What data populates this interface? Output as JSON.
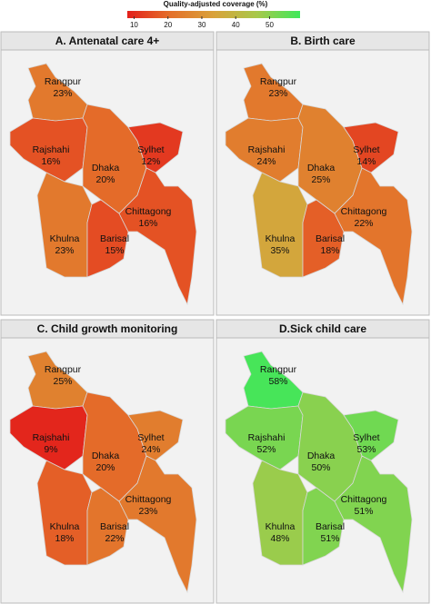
{
  "legend": {
    "title": "Quality-adjusted coverage (%)",
    "clim": [
      8,
      59
    ],
    "ticks": [
      10,
      20,
      30,
      40,
      50
    ],
    "colormap": [
      "#e3201b",
      "#e4702a",
      "#d9a23a",
      "#a8c84a",
      "#3fe85a"
    ]
  },
  "regions": [
    "Rangpur",
    "Rajshahi",
    "Dhaka",
    "Sylhet",
    "Khulna",
    "Barisal",
    "Chittagong"
  ],
  "panels": [
    {
      "title": "A. Antenatal care 4+",
      "values": [
        23,
        16,
        20,
        12,
        23,
        15,
        16
      ],
      "value_labels": [
        "23%",
        "16%",
        "20%",
        "12%",
        "23%",
        "15%",
        "16%"
      ]
    },
    {
      "title": "B. Birth care",
      "values": [
        23,
        24,
        25,
        14,
        35,
        18,
        22
      ],
      "value_labels": [
        "23%",
        "24%",
        "25%",
        "14%",
        "35%",
        "18%",
        "22%"
      ]
    },
    {
      "title": "C. Child growth monitoring",
      "values": [
        25,
        9,
        20,
        24,
        18,
        22,
        23
      ],
      "value_labels": [
        "25%",
        "9%",
        "20%",
        "24%",
        "18%",
        "22%",
        "23%"
      ]
    },
    {
      "title": "D.Sick child care",
      "values": [
        58,
        52,
        50,
        53,
        48,
        51,
        51
      ],
      "value_labels": [
        "58%",
        "52%",
        "50%",
        "53%",
        "48%",
        "51%",
        "51%"
      ]
    }
  ]
}
